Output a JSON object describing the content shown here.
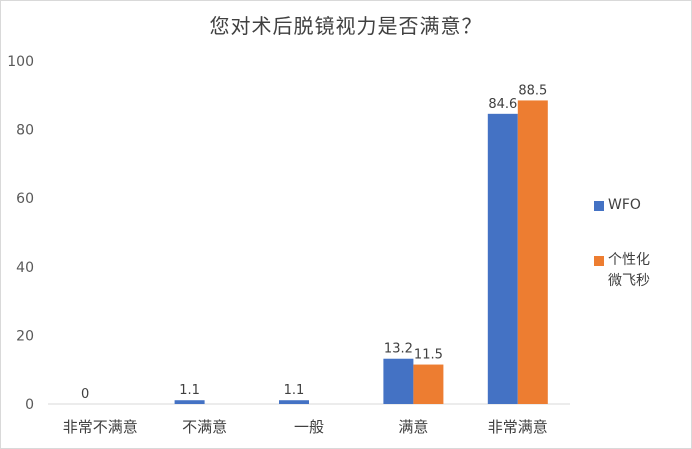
{
  "chart_data": {
    "type": "bar",
    "title": "您对术后脱镜视力是否满意？",
    "categories": [
      "非常不满意",
      "不满意",
      "一般",
      "满意",
      "非常满意"
    ],
    "series": [
      {
        "name": "WFO",
        "color": "#4472c4",
        "values": [
          0,
          1.1,
          1.1,
          13.2,
          84.6
        ],
        "labels": [
          "0",
          "1.1",
          "1.1",
          "13.2",
          "84.6"
        ]
      },
      {
        "name": "个性化微飞秒",
        "color": "#ed7d31",
        "values": [
          null,
          null,
          null,
          11.5,
          88.5
        ],
        "labels": [
          "",
          "",
          "",
          "11.5",
          "88.5"
        ]
      }
    ],
    "ylim": [
      0,
      100
    ],
    "yticks": [
      "0",
      "20",
      "40",
      "60",
      "80",
      "100"
    ],
    "ytick_values": [
      0,
      20,
      40,
      60,
      80,
      100
    ],
    "grid": false,
    "legend_position": "right",
    "legend_lines": [
      [
        "WFO"
      ],
      [
        "个性化",
        "微飞秒"
      ]
    ]
  }
}
